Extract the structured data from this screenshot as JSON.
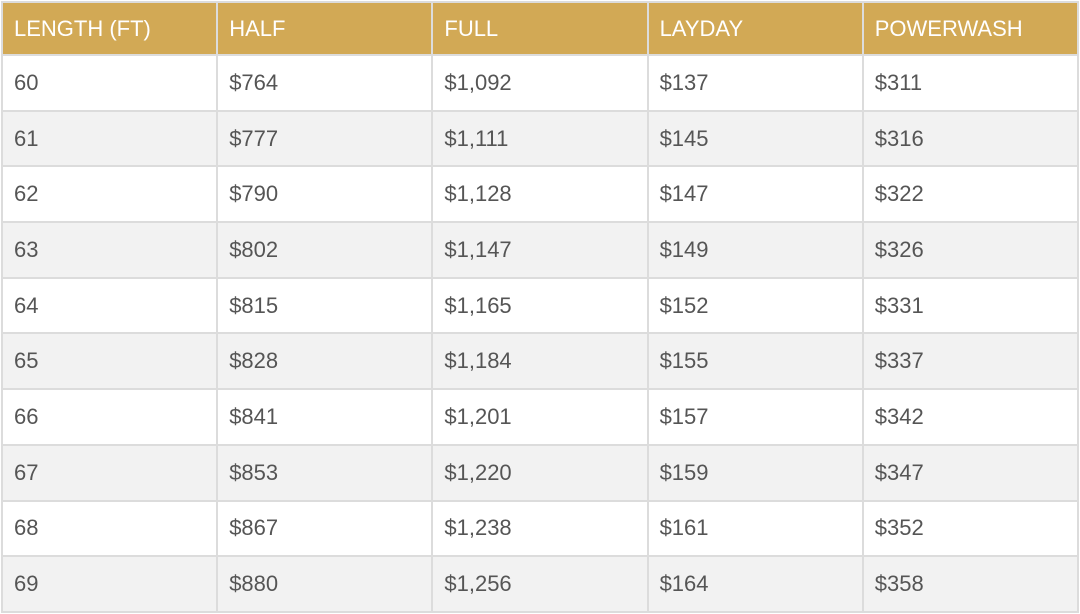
{
  "table": {
    "header": [
      "LENGTH (FT)",
      "HALF",
      "FULL",
      "LAYDAY",
      "POWERWASH"
    ],
    "rows": [
      [
        "60",
        "$764",
        "$1,092",
        "$137",
        "$311"
      ],
      [
        "61",
        "$777",
        "$1,111",
        "$145",
        "$316"
      ],
      [
        "62",
        "$790",
        "$1,128",
        "$147",
        "$322"
      ],
      [
        "63",
        "$802",
        "$1,147",
        "$149",
        "$326"
      ],
      [
        "64",
        "$815",
        "$1,165",
        "$152",
        "$331"
      ],
      [
        "65",
        "$828",
        "$1,184",
        "$155",
        "$337"
      ],
      [
        "66",
        "$841",
        "$1,201",
        "$157",
        "$342"
      ],
      [
        "67",
        "$853",
        "$1,220",
        "$159",
        "$347"
      ],
      [
        "68",
        "$867",
        "$1,238",
        "$161",
        "$352"
      ],
      [
        "69",
        "$880",
        "$1,256",
        "$164",
        "$358"
      ]
    ]
  }
}
